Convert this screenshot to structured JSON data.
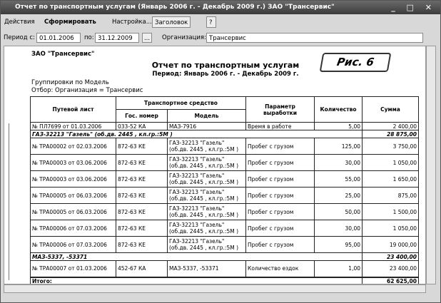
{
  "window": {
    "title": "Отчет по транспортным услугам (Январь 2006 г. - Декабрь 2009 г.) ЗАО \"Трансервис\""
  },
  "toolbar": {
    "actions": "Действия",
    "generate": "Сформировать",
    "settings": "Настройка...",
    "header": "Заголовок",
    "help": "?"
  },
  "filter": {
    "period_from_label": "Период с:",
    "period_from": "01.01.2006",
    "period_to_label": "по:",
    "period_to": "31.12.2009",
    "more": "...",
    "org_label": "Организация:",
    "org": "Трансервис"
  },
  "report": {
    "company": "ЗАО \"Трансервис\"",
    "title": "Отчет по транспортным услугам",
    "subtitle": "Период: Январь 2006 г. - Декабрь 2009 г.",
    "grouping": "Группировки по Модель",
    "selection": "Отбор: Организация = Трансервис",
    "badge": "Рис. 6"
  },
  "table": {
    "headers": {
      "waybill": "Путевой лист",
      "vehicle": "Транспортное средство",
      "plate": "Гос. номер",
      "model": "Модель",
      "param": "Параметр выработки",
      "qty": "Количество",
      "sum": "Сумма"
    },
    "rows": [
      {
        "kind": "row",
        "cells": [
          "№ ПЛ7699    от 01.03.2006",
          "033-52 КА",
          "МАЗ-7916",
          "Время в работе",
          "5,00",
          "2 400,00"
        ]
      },
      {
        "kind": "group",
        "cells": [
          "ГАЗ-32213 \"Газель\" (об.дв. 2445 , кл.гр.:5М )",
          "28 875,00"
        ]
      },
      {
        "kind": "row",
        "cells": [
          "№ ТРА00002    от 02.03.2006",
          "872-63 КЕ",
          "ГАЗ-32213 \"Газель\" (об.дв. 2445 , кл.гр.:5М )",
          "Пробег с грузом",
          "125,00",
          "3 750,00"
        ]
      },
      {
        "kind": "row",
        "cells": [
          "№ ТРА00003    от 03.06.2006",
          "872-63 КЕ",
          "ГАЗ-32213 \"Газель\" (об.дв. 2445 , кл.гр.:5М )",
          "Пробег с грузом",
          "30,00",
          "1 050,00"
        ]
      },
      {
        "kind": "row",
        "cells": [
          "№ ТРА00003    от 03.06.2006",
          "872-63 КЕ",
          "ГАЗ-32213 \"Газель\" (об.дв. 2445 , кл.гр.:5М )",
          "Пробег с грузом",
          "55,00",
          "1 650,00"
        ]
      },
      {
        "kind": "row",
        "cells": [
          "№ ТРА00005    от 06.03.2006",
          "872-63 КЕ",
          "ГАЗ-32213 \"Газель\" (об.дв. 2445 , кл.гр.:5М )",
          "Пробег с грузом",
          "25,00",
          "875,00"
        ]
      },
      {
        "kind": "row",
        "cells": [
          "№ ТРА00005    от 06.03.2006",
          "872-63 КЕ",
          "ГАЗ-32213 \"Газель\" (об.дв. 2445 , кл.гр.:5М )",
          "Пробег с грузом",
          "50,00",
          "1 500,00"
        ]
      },
      {
        "kind": "row",
        "cells": [
          "№ ТРА00006    от 07.03.2006",
          "872-63 КЕ",
          "ГАЗ-32213 \"Газель\" (об.дв. 2445 , кл.гр.:5М )",
          "Пробег с грузом",
          "30,00",
          "1 050,00"
        ]
      },
      {
        "kind": "row",
        "cells": [
          "№ ТРА00006    от 07.03.2006",
          "872-63 КЕ",
          "ГАЗ-32213 \"Газель\" (об.дв. 2445 , кл.гр.:5М )",
          "Пробег с грузом",
          "95,00",
          "19 000,00"
        ]
      },
      {
        "kind": "group",
        "cells": [
          "МАЗ-5337, -53371",
          "23 400,00"
        ]
      },
      {
        "kind": "row",
        "cells": [
          "№ ТРА00007    от 01.03.2006",
          "452-67 КА",
          "МАЗ-5337, -53371",
          "Количество ездок",
          "1,00",
          "23 400,00"
        ]
      },
      {
        "kind": "total",
        "cells": [
          "Итого:",
          "62 625,00"
        ]
      }
    ]
  }
}
